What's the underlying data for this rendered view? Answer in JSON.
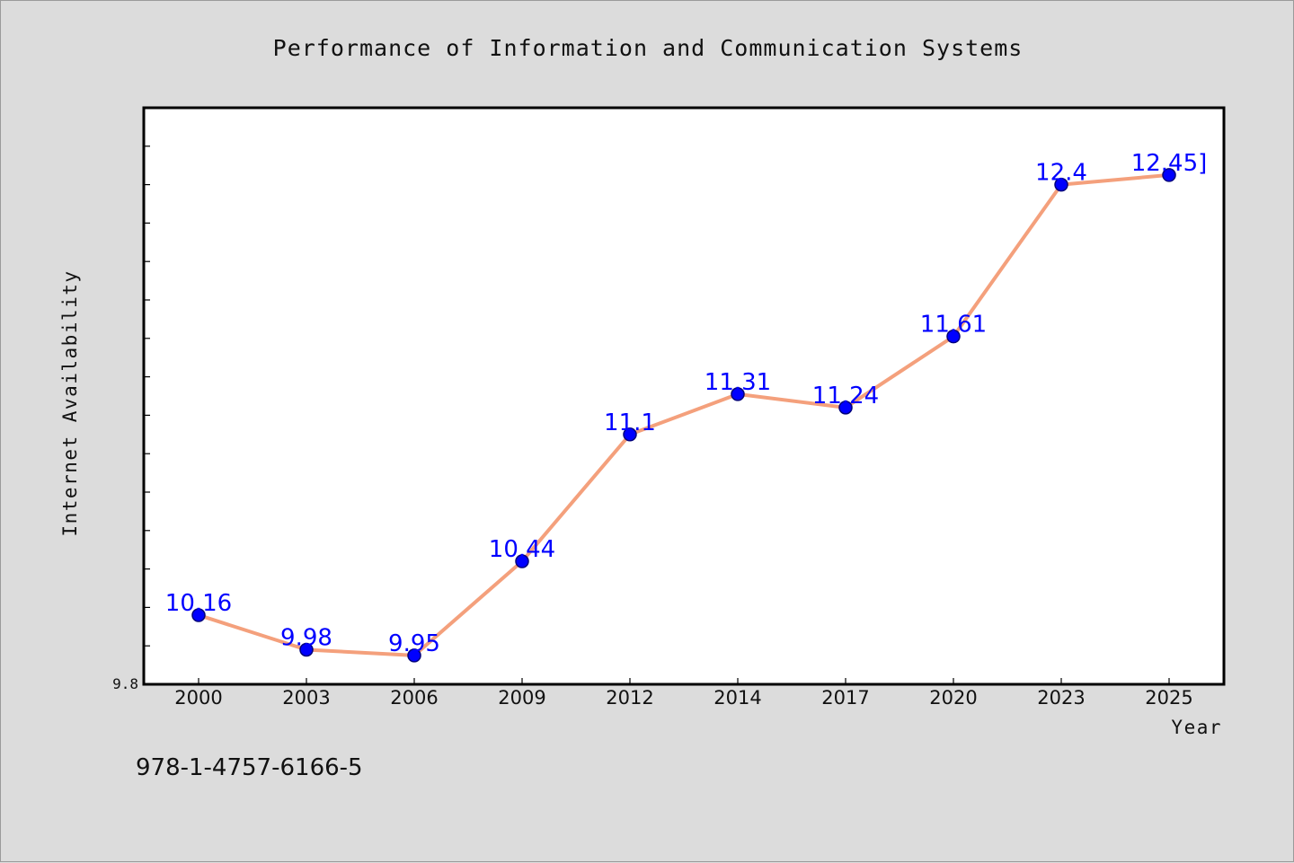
{
  "isbn": "978-1-4757-6166-5",
  "colors": {
    "background": "#dcdcdc",
    "plot_background": "#ffffff",
    "line": "#f4a07c",
    "marker": "#0000ff",
    "data_label": "#0000ff"
  },
  "chart_data": {
    "type": "line",
    "title": "Performance of Information and Communication Systems",
    "xlabel": "Year",
    "ylabel": "Internet Availability",
    "categories": [
      "2000",
      "2003",
      "2006",
      "2009",
      "2012",
      "2014",
      "2017",
      "2020",
      "2023",
      "2025"
    ],
    "series": [
      {
        "values": [
          10.16,
          9.98,
          9.95,
          10.44,
          11.1,
          11.31,
          11.24,
          11.61,
          12.4,
          12.45
        ]
      }
    ],
    "data_labels": [
      "10.16",
      "9.98",
      "9.95",
      "10.44",
      "11.1",
      "11.31",
      "11.24",
      "11.61",
      "12.4",
      "12.45]"
    ],
    "y_min_label": "9.8",
    "ylim": [
      9.8,
      12.8
    ],
    "grid": false,
    "legend": "none",
    "marker": "circle"
  }
}
